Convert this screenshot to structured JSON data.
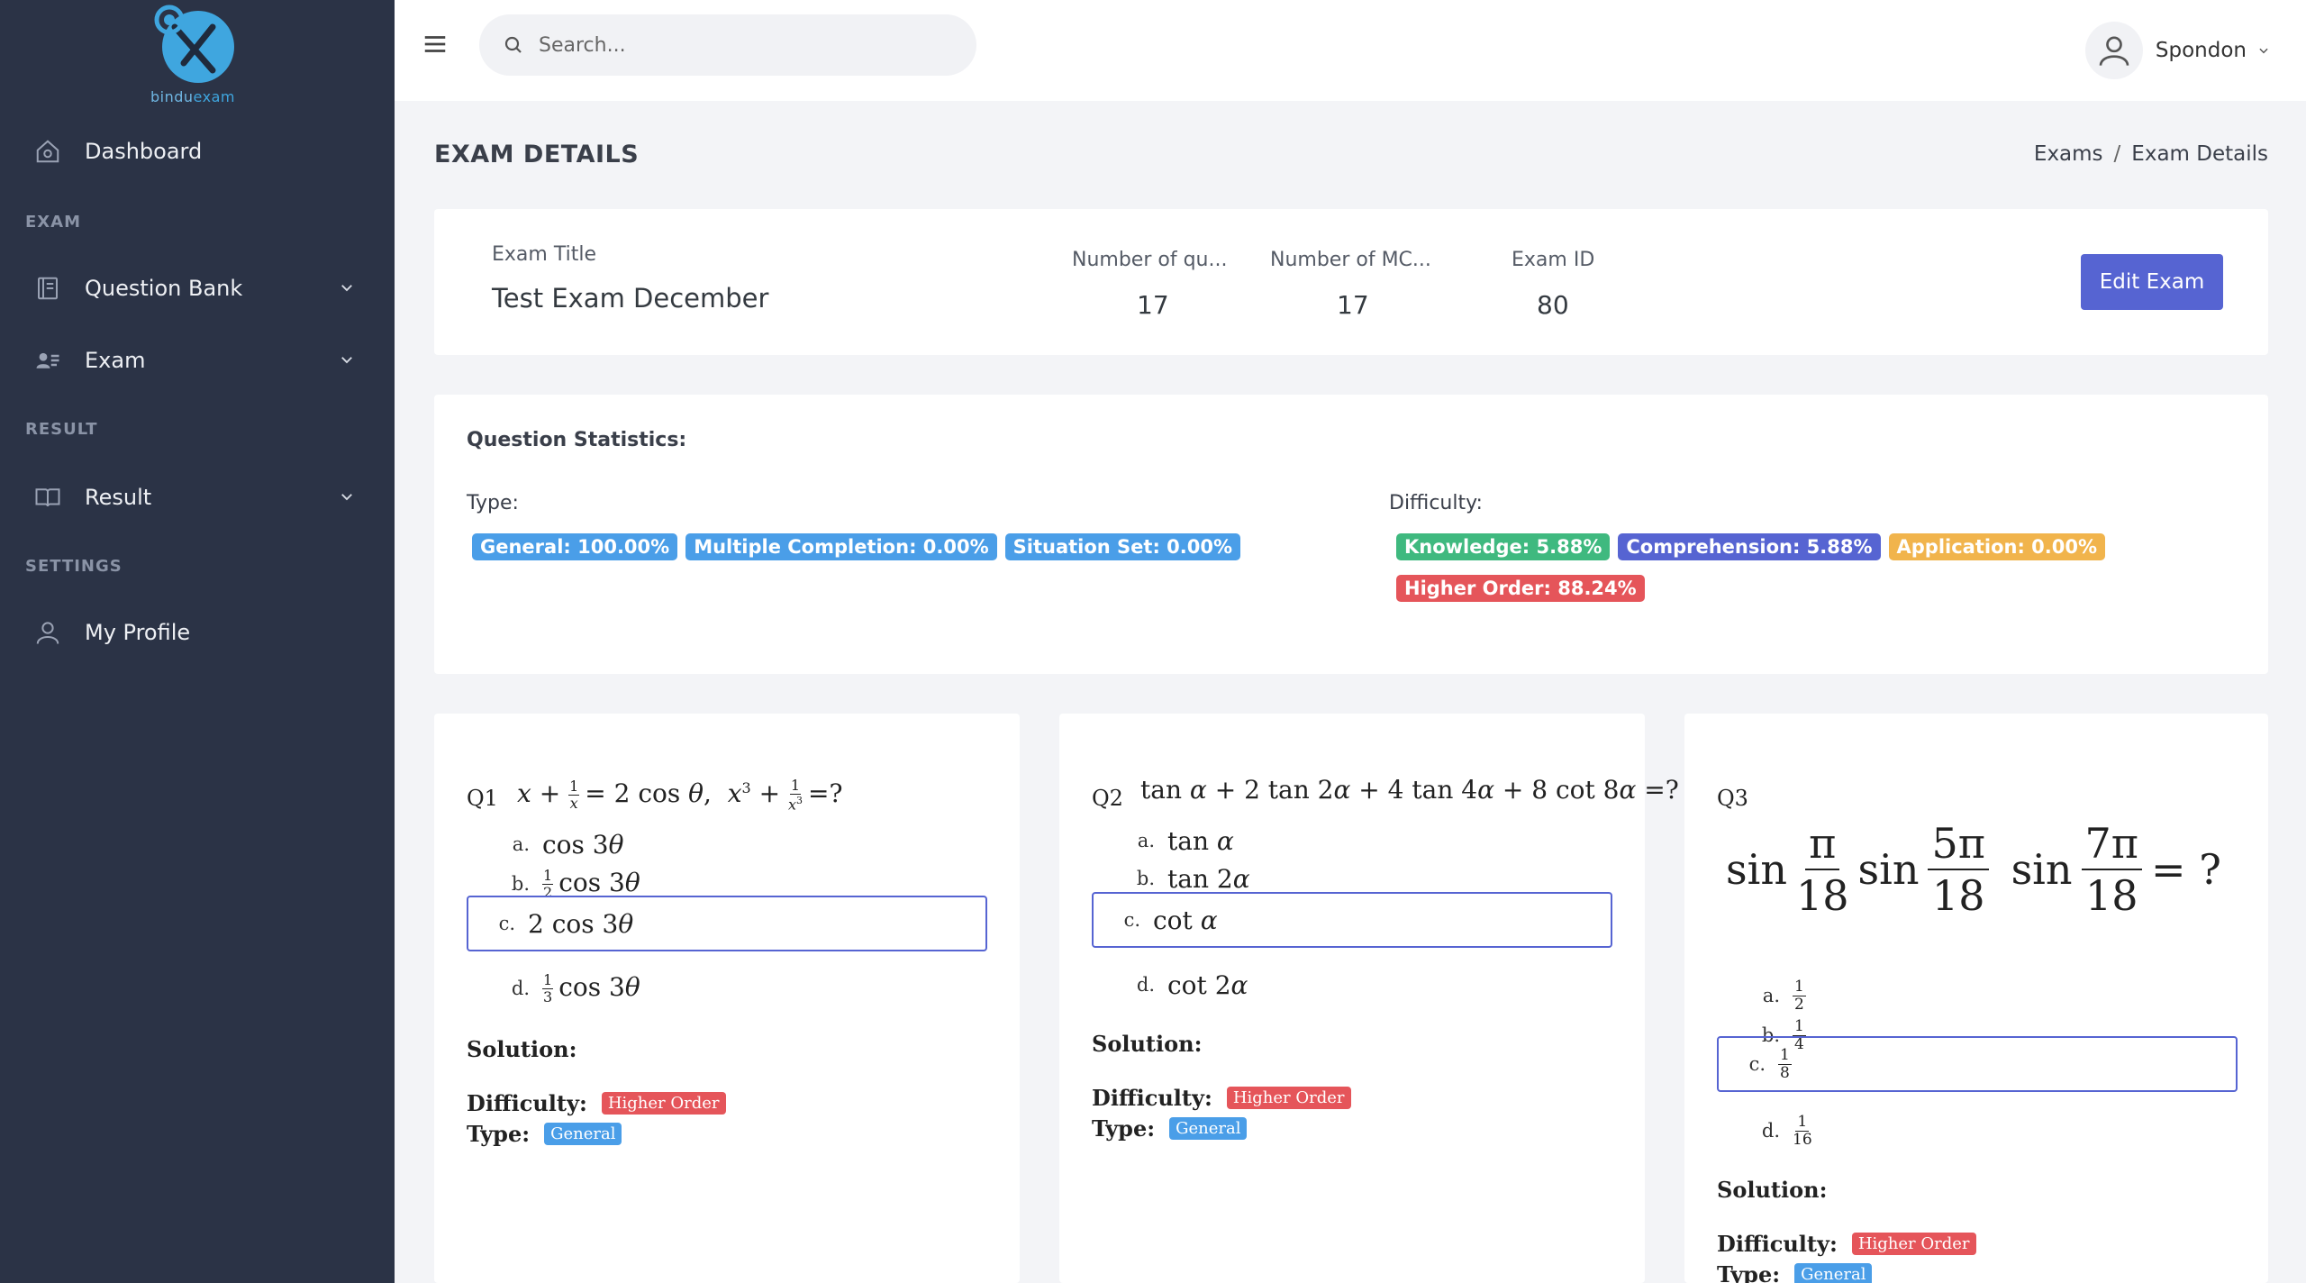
{
  "brand": {
    "name_prefix": "bindu",
    "name_suffix": "exam"
  },
  "sidebar": {
    "dashboard": "Dashboard",
    "section_exam": "EXAM",
    "question_bank": "Question Bank",
    "exam": "Exam",
    "section_result": "RESULT",
    "result": "Result",
    "section_settings": "SETTINGS",
    "my_profile": "My Profile"
  },
  "topbar": {
    "search_placeholder": "Search...",
    "user_name": "Spondon"
  },
  "page": {
    "title": "EXAM DETAILS",
    "breadcrumb": [
      "Exams",
      "/",
      "Exam Details"
    ]
  },
  "exam_info": {
    "title_label": "Exam Title",
    "title_value": "Test Exam December",
    "num_questions_label": "Number of qu...",
    "num_questions_value": "17",
    "num_mcq_label": "Number of MC...",
    "num_mcq_value": "17",
    "exam_id_label": "Exam ID",
    "exam_id_value": "80",
    "edit_button": "Edit Exam"
  },
  "stats": {
    "title": "Question Statistics:",
    "type_label": "Type:",
    "type_badges": [
      "General: 100.00%",
      "Multiple Completion: 0.00%",
      "Situation Set: 0.00%"
    ],
    "difficulty_label": "Difficulty:",
    "difficulty_badges": [
      "Knowledge: 5.88%",
      "Comprehension: 5.88%",
      "Application: 0.00%",
      "Higher Order: 88.24%"
    ]
  },
  "questions": [
    {
      "num": "Q1",
      "options": [
        "a.",
        "b.",
        "c.",
        "d."
      ],
      "selected": "c.",
      "solution_label": "Solution:",
      "difficulty_label": "Difficulty:",
      "difficulty": "Higher Order",
      "type_label": "Type:",
      "type": "General"
    },
    {
      "num": "Q2",
      "options": [
        "a.",
        "b.",
        "c.",
        "d."
      ],
      "selected": "c.",
      "solution_label": "Solution:",
      "difficulty_label": "Difficulty:",
      "difficulty": "Higher Order",
      "type_label": "Type:",
      "type": "General"
    },
    {
      "num": "Q3",
      "options": [
        "a.",
        "b.",
        "c.",
        "d."
      ],
      "selected": "c.",
      "solution_label": "Solution:",
      "difficulty_label": "Difficulty:",
      "difficulty": "Higher Order",
      "type_label": "Type:",
      "type": "General"
    }
  ],
  "colors": {
    "sidebar_bg": "#2b3346",
    "accent": "#5664d2",
    "info": "#4a9ee8",
    "success": "#3fb97f",
    "warning": "#f1b44c",
    "danger": "#e5555a"
  }
}
